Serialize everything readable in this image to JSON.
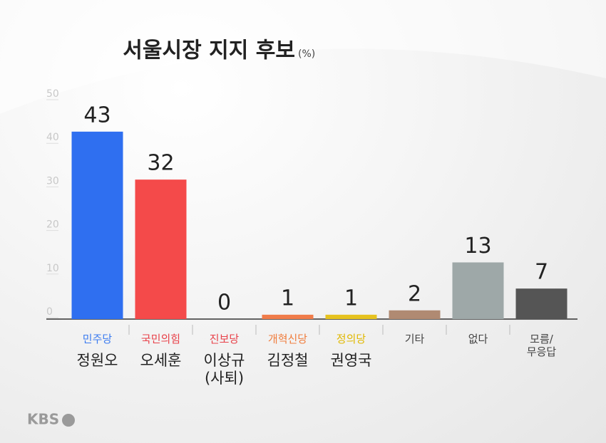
{
  "chart_data": {
    "type": "bar",
    "title": "서울시장 지지 후보",
    "unit": "(%)",
    "source": "KBS",
    "categories": [
      "민주당",
      "국민의힘",
      "진보당",
      "개혁신당",
      "정의당",
      "기타",
      "없다",
      "모름/\n무응답"
    ],
    "label_colors": [
      "#3b7bf0",
      "#e8424a",
      "#e8424a",
      "#f07c3c",
      "#e0b800",
      "#444444",
      "#444444",
      "#444444"
    ],
    "candidates": [
      "정원오",
      "오세훈",
      "이상규\n(사퇴)",
      "김정철",
      "권영국",
      null,
      null,
      null
    ],
    "values": [
      43,
      32,
      0,
      1,
      1,
      2,
      13,
      7
    ],
    "colors": [
      "#2f6ff0",
      "#f44a4a",
      "#f44a4a",
      "#f07c4a",
      "#e6c21f",
      "#b08a72",
      "#9ea8a8",
      "#555555"
    ],
    "ylim": [
      0,
      50
    ],
    "yticks": [
      0,
      10,
      20,
      30,
      40,
      50
    ]
  }
}
